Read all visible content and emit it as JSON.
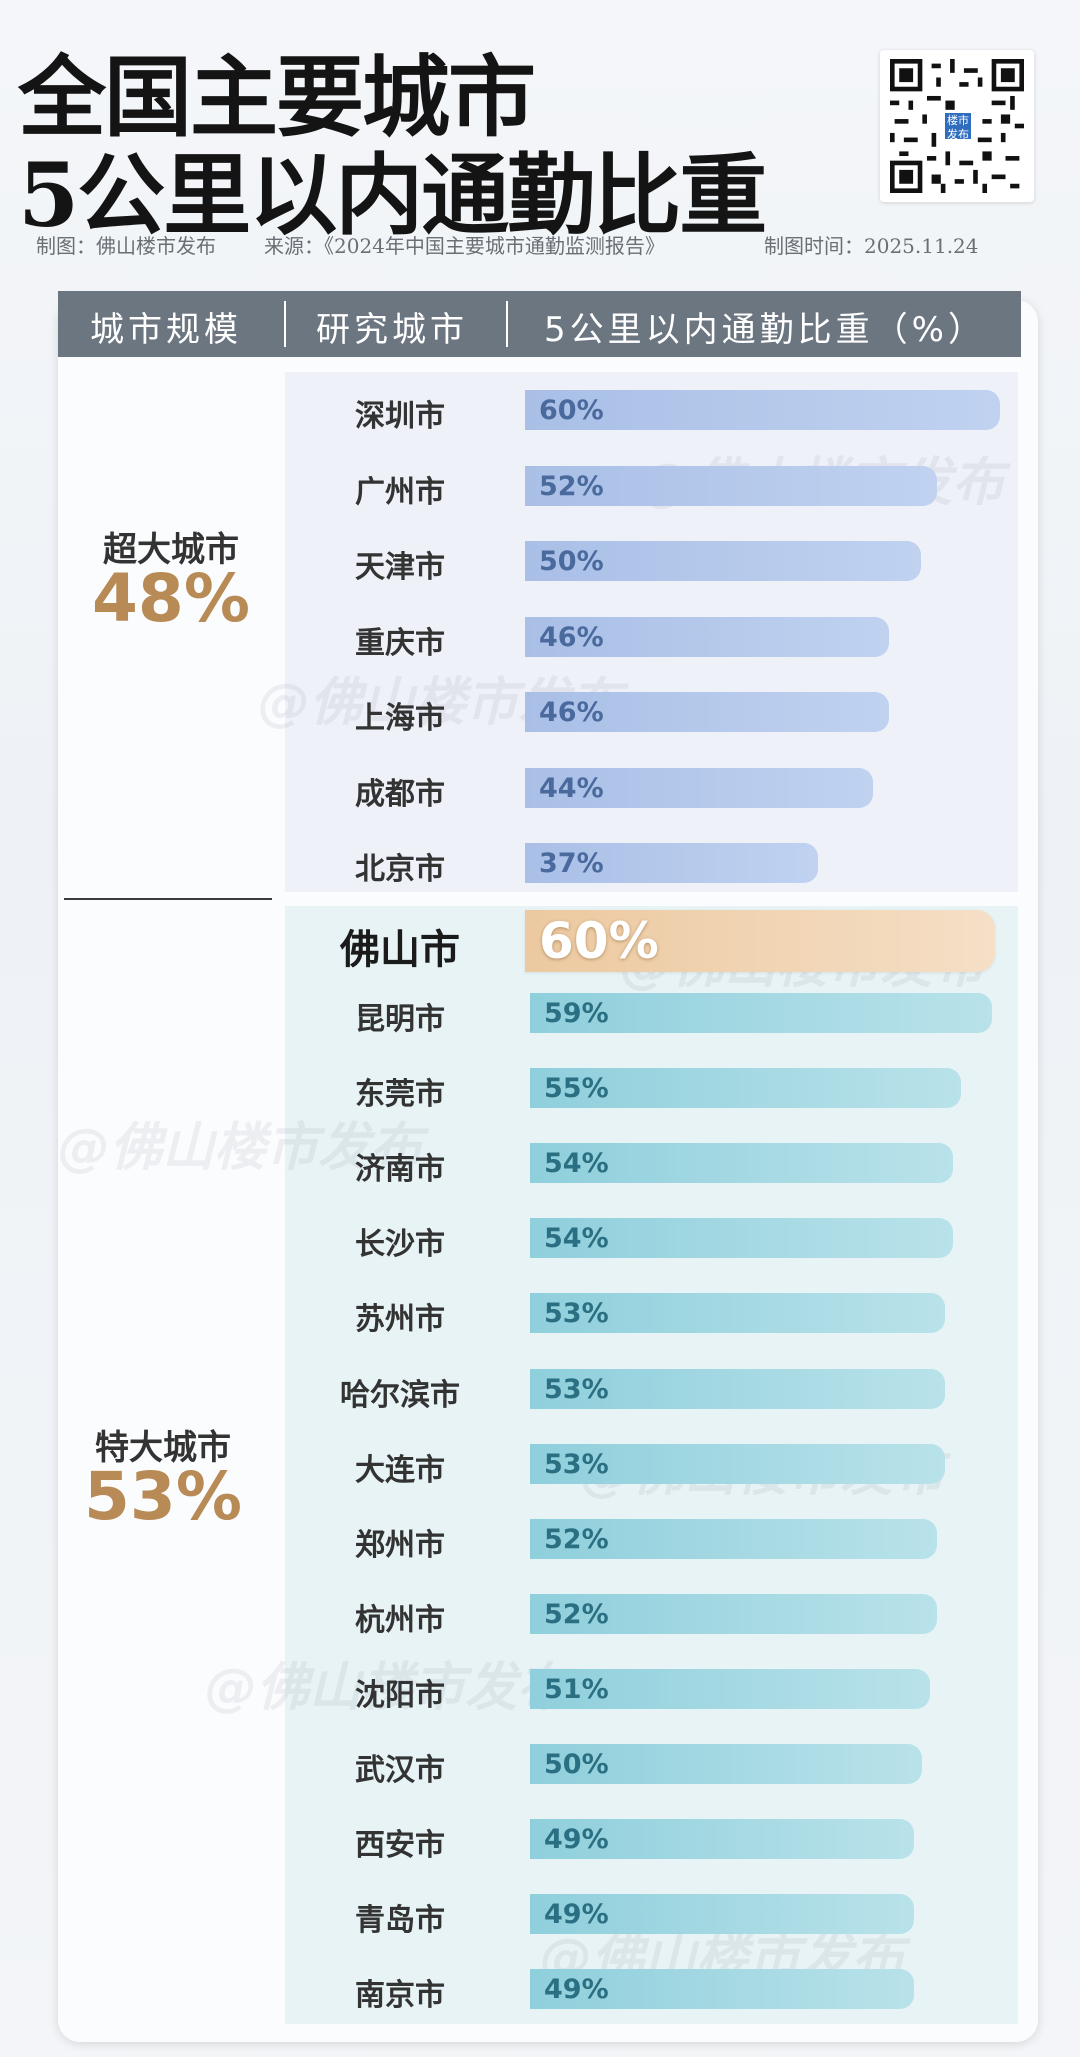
{
  "title": {
    "line1": "全国主要城市",
    "line2": "5公里以内通勤比重"
  },
  "qr_logo": "楼市发布",
  "credits": {
    "maker": "制图：佛山楼市发布",
    "source": "来源：《2024年中国主要城市通勤监测报告》",
    "date": "制图时间：2025.11.24"
  },
  "header": {
    "col1": "城市规模",
    "col2": "研究城市",
    "col3": "5公里以内通勤比重（%）"
  },
  "watermark": "@佛山楼市发布",
  "colors": {
    "super_bar": "#a9bfe6",
    "mega_bar": "#8fcfdc",
    "highlight_bar": "#ecc9a0",
    "tier_pct": "#b88a55",
    "header_bg": "#6c7680"
  },
  "chart_data": {
    "type": "bar",
    "orientation": "horizontal",
    "xlim": [
      0,
      60
    ],
    "groups": [
      {
        "name": "超大城市",
        "average_label": "48%",
        "categories": [
          "深圳市",
          "广州市",
          "天津市",
          "重庆市",
          "上海市",
          "成都市",
          "北京市"
        ],
        "values": [
          60,
          52,
          50,
          46,
          46,
          44,
          37
        ],
        "labels": [
          "60%",
          "52%",
          "50%",
          "46%",
          "46%",
          "44%",
          "37%"
        ]
      },
      {
        "name": "特大城市",
        "average_label": "53%",
        "categories": [
          "佛山市",
          "昆明市",
          "东莞市",
          "济南市",
          "长沙市",
          "苏州市",
          "哈尔滨市",
          "大连市",
          "郑州市",
          "杭州市",
          "沈阳市",
          "武汉市",
          "西安市",
          "青岛市",
          "南京市"
        ],
        "values": [
          60,
          59,
          55,
          54,
          54,
          53,
          53,
          53,
          52,
          52,
          51,
          50,
          49,
          49,
          49
        ],
        "labels": [
          "60%",
          "59%",
          "55%",
          "54%",
          "54%",
          "53%",
          "53%",
          "53%",
          "52%",
          "52%",
          "51%",
          "50%",
          "49%",
          "49%",
          "49%"
        ],
        "highlight": "佛山市"
      }
    ]
  }
}
